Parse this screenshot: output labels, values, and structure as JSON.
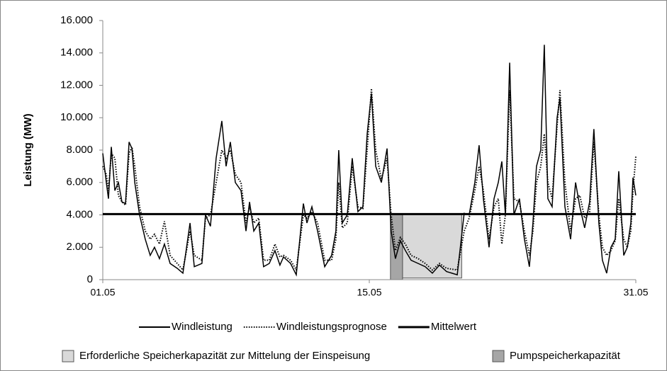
{
  "chart_data": {
    "type": "line",
    "y_label": "Leistung (MW)",
    "xlim": [
      0,
      30
    ],
    "xticks": [
      {
        "value": 0,
        "label": "01.05"
      },
      {
        "value": 15,
        "label": "15.05"
      },
      {
        "value": 30,
        "label": "31.05"
      }
    ],
    "ylim": [
      0,
      16000
    ],
    "yticks": [
      0,
      {
        "value": 2000,
        "label": "2.000"
      },
      {
        "value": 4000,
        "label": "4.000"
      },
      {
        "value": 6000,
        "label": "6.000"
      },
      {
        "value": 8000,
        "label": "8.000"
      },
      {
        "value": 10000,
        "label": "10.000"
      },
      {
        "value": 12000,
        "label": "12.000"
      },
      {
        "value": 14000,
        "label": "14.000"
      },
      {
        "value": 16000,
        "label": "16.000"
      }
    ],
    "grid": false,
    "legend": "bottom",
    "x": [
      0,
      0.2,
      0.32,
      0.48,
      0.68,
      0.88,
      1.08,
      1.28,
      1.48,
      1.64,
      1.8,
      2.07,
      2.39,
      2.67,
      2.91,
      3.19,
      3.47,
      3.79,
      4.19,
      4.51,
      4.91,
      5.15,
      5.58,
      5.78,
      6.06,
      6.38,
      6.7,
      6.94,
      7.18,
      7.46,
      7.78,
      8.06,
      8.26,
      8.5,
      8.78,
      9.05,
      9.37,
      9.69,
      9.97,
      10.17,
      10.57,
      10.89,
      11.29,
      11.49,
      11.77,
      12.09,
      12.49,
      12.88,
      13.12,
      13.28,
      13.48,
      13.76,
      14.04,
      14.36,
      14.64,
      14.88,
      15.12,
      15.36,
      15.68,
      16.0,
      16.23,
      16.47,
      16.75,
      17.03,
      17.35,
      17.75,
      18.15,
      18.55,
      18.95,
      19.35,
      19.95,
      20.34,
      20.62,
      20.94,
      21.18,
      21.42,
      21.74,
      22.02,
      22.26,
      22.46,
      22.66,
      22.9,
      23.14,
      23.45,
      23.73,
      24.01,
      24.21,
      24.41,
      24.65,
      24.85,
      25.05,
      25.29,
      25.57,
      25.73,
      26.01,
      26.33,
      26.61,
      26.85,
      27.12,
      27.4,
      27.64,
      27.92,
      28.12,
      28.36,
      28.6,
      28.84,
      29.04,
      29.32,
      29.52,
      29.72,
      29.84,
      30
    ],
    "series": [
      {
        "name": "Windleistung",
        "color": "#000000",
        "style": "solid",
        "values": [
          7800,
          6000,
          5000,
          8200,
          5500,
          6000,
          4800,
          4700,
          8500,
          8100,
          6000,
          4000,
          2500,
          1500,
          2000,
          1300,
          2200,
          1000,
          700,
          400,
          3500,
          800,
          1000,
          4000,
          3300,
          7500,
          9800,
          7000,
          8500,
          6000,
          5500,
          3000,
          4800,
          3000,
          3500,
          800,
          1000,
          1800,
          900,
          1400,
          1000,
          300,
          4700,
          3500,
          4500,
          3000,
          800,
          1500,
          3000,
          8000,
          3500,
          4000,
          7500,
          4200,
          4500,
          9000,
          11500,
          7000,
          6000,
          8100,
          3000,
          1300,
          2400,
          1800,
          1200,
          1000,
          800,
          400,
          900,
          500,
          300,
          4100,
          4000,
          6000,
          8300,
          5000,
          2000,
          5000,
          6000,
          7300,
          4000,
          13400,
          4000,
          5000,
          2500,
          800,
          3500,
          7000,
          8000,
          14500,
          5000,
          4500,
          10000,
          11200,
          4500,
          2500,
          6000,
          4500,
          3200,
          4800,
          9300,
          3500,
          1200,
          400,
          2000,
          2500,
          6700,
          1500,
          2000,
          3500,
          6300,
          5200
        ]
      },
      {
        "name": "Windleistungsprognose",
        "color": "#000000",
        "style": "dotted",
        "values": [
          7000,
          6500,
          5500,
          7800,
          7500,
          5200,
          4800,
          4600,
          7800,
          8200,
          7000,
          4500,
          3000,
          2500,
          2800,
          2200,
          3600,
          1500,
          1000,
          600,
          3000,
          1500,
          1200,
          3800,
          4000,
          6000,
          8000,
          7500,
          8000,
          6500,
          6000,
          3500,
          4500,
          3500,
          3800,
          1200,
          1200,
          2200,
          1400,
          1500,
          1200,
          600,
          4000,
          3800,
          4200,
          3500,
          1200,
          1200,
          2500,
          6000,
          3200,
          3500,
          7000,
          4500,
          4400,
          8000,
          11800,
          8000,
          6200,
          7500,
          4000,
          1800,
          2600,
          2200,
          1500,
          1300,
          1000,
          600,
          1000,
          700,
          600,
          3000,
          3800,
          5500,
          7000,
          5500,
          2500,
          4500,
          5000,
          2200,
          4000,
          11700,
          5000,
          4800,
          3000,
          1500,
          3000,
          6000,
          7000,
          9000,
          6000,
          5000,
          9500,
          11700,
          6000,
          3000,
          5000,
          5200,
          3800,
          4200,
          8500,
          4000,
          2000,
          1500,
          1800,
          2400,
          5000,
          2500,
          2000,
          3000,
          5500,
          7600
        ]
      }
    ],
    "mean": {
      "name": "Mittelwert",
      "color": "#000000",
      "value": 4050
    },
    "regions": [
      {
        "name": "Erforderliche Speicherkapazität zur Mittelung der Einspeisung",
        "color": "#d9d9d9",
        "x": [
          16.87,
          20.2
        ],
        "y": [
          100,
          4050
        ]
      },
      {
        "name": "Pumpspeicherkapazität",
        "color": "#a6a6a6",
        "x": [
          16.19,
          16.87
        ],
        "y": [
          0,
          4050
        ]
      }
    ]
  }
}
